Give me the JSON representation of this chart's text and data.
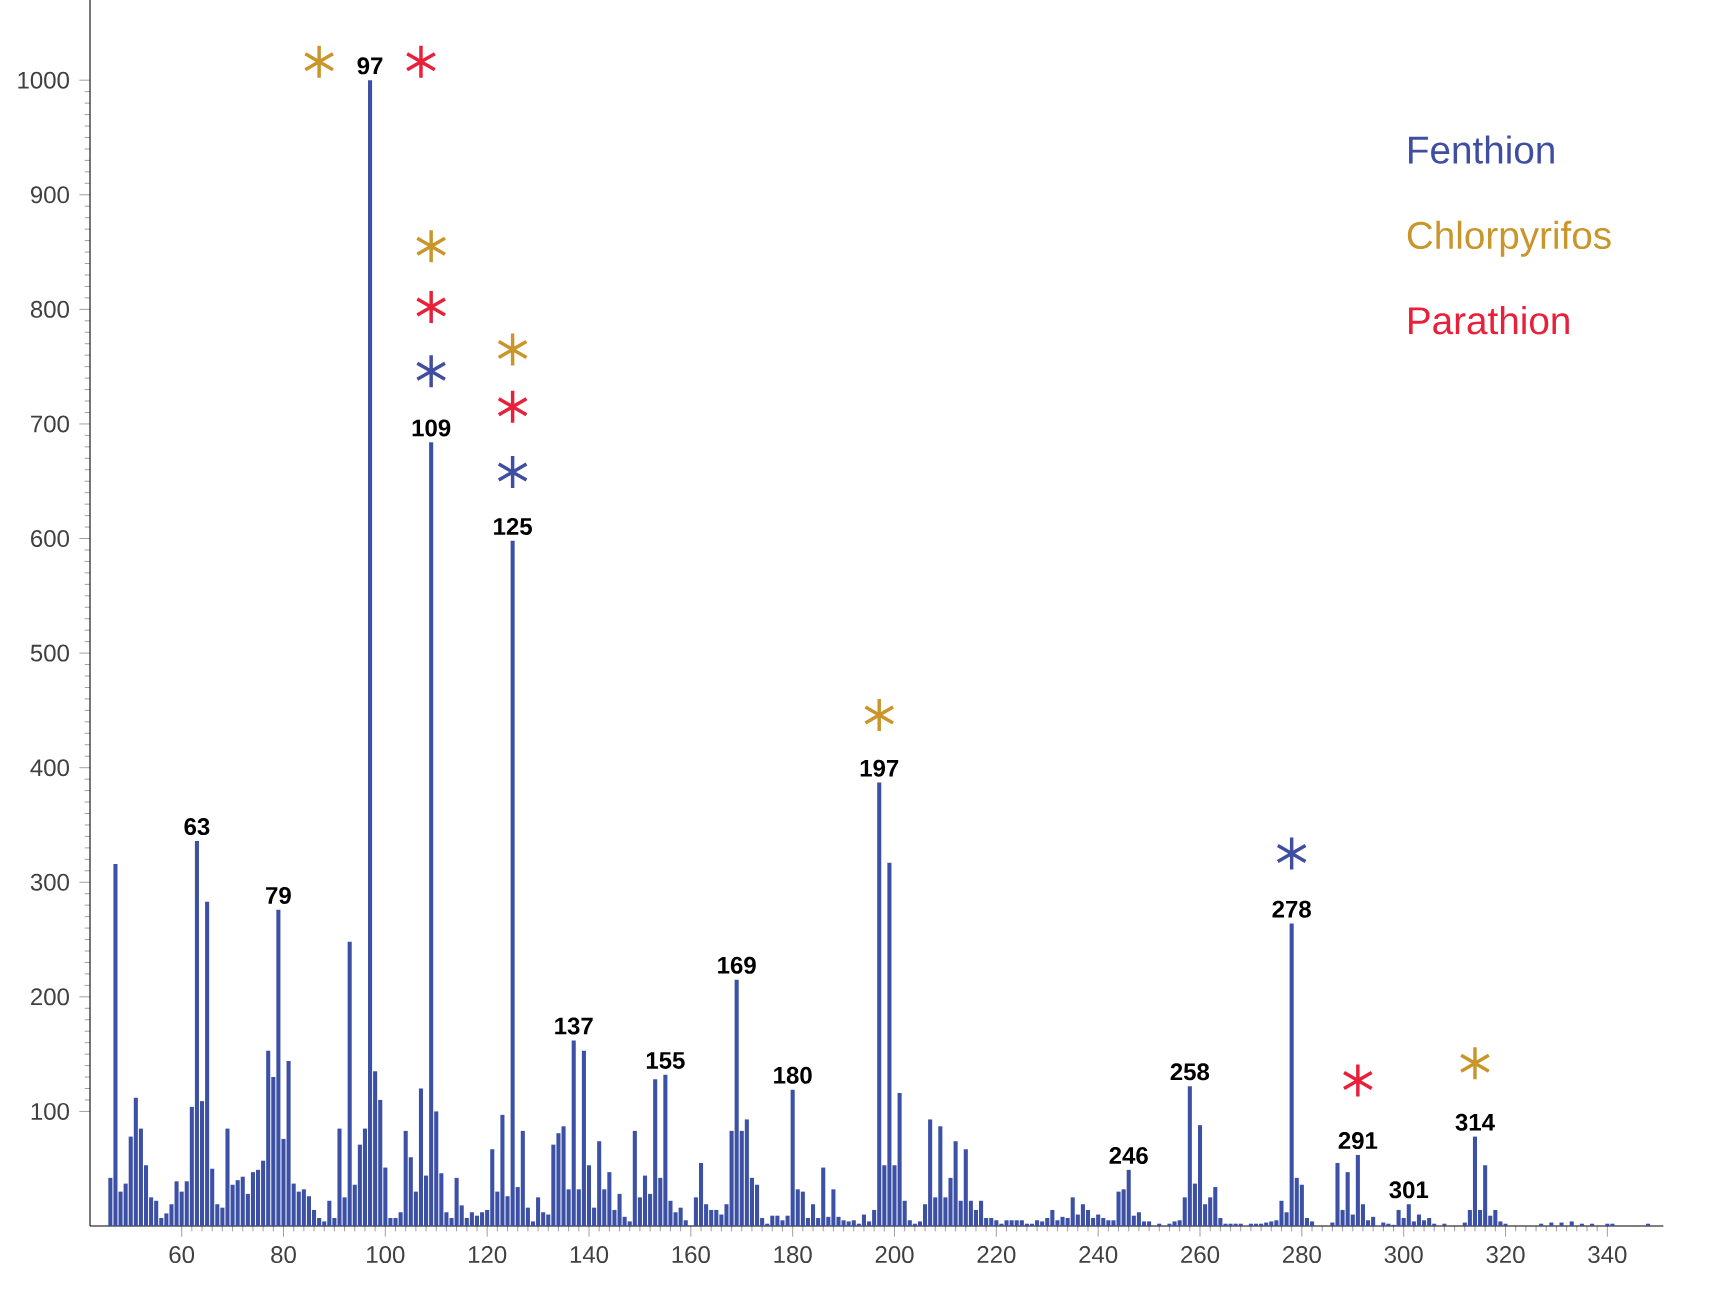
{
  "chart_data": {
    "type": "bar",
    "xlim": [
      42,
      351
    ],
    "ylim": [
      0,
      1070
    ],
    "xticks": [
      60,
      80,
      100,
      120,
      140,
      160,
      180,
      200,
      220,
      240,
      260,
      280,
      300,
      320,
      340
    ],
    "yticks": [
      100,
      200,
      300,
      400,
      500,
      600,
      700,
      800,
      900,
      1000
    ],
    "marker": "cross",
    "legend": "top right",
    "series": [
      {
        "color": "#3c50a5",
        "x": [
          46,
          47,
          48,
          49,
          50,
          51,
          52,
          53,
          54,
          55,
          56,
          57,
          58,
          59,
          60,
          61,
          62,
          63,
          64,
          65,
          66,
          67,
          68,
          69,
          70,
          71,
          72,
          73,
          74,
          75,
          76,
          77,
          78,
          79,
          80,
          81,
          82,
          83,
          84,
          85,
          86,
          87,
          88,
          89,
          90,
          91,
          92,
          93,
          94,
          95,
          96,
          97,
          98,
          99,
          100,
          101,
          102,
          103,
          104,
          105,
          106,
          107,
          108,
          109,
          110,
          111,
          112,
          113,
          114,
          115,
          116,
          117,
          118,
          119,
          120,
          121,
          122,
          123,
          124,
          125,
          126,
          127,
          128,
          129,
          130,
          131,
          132,
          133,
          134,
          135,
          136,
          137,
          138,
          139,
          140,
          141,
          142,
          143,
          144,
          145,
          146,
          147,
          148,
          149,
          150,
          151,
          152,
          153,
          154,
          155,
          156,
          157,
          158,
          159,
          161,
          162,
          163,
          164,
          165,
          166,
          167,
          168,
          169,
          170,
          171,
          172,
          173,
          174,
          175,
          176,
          177,
          178,
          179,
          180,
          181,
          182,
          183,
          184,
          185,
          186,
          187,
          188,
          189,
          190,
          191,
          192,
          193,
          194,
          195,
          196,
          197,
          198,
          199,
          200,
          201,
          202,
          203,
          204,
          205,
          206,
          207,
          208,
          209,
          210,
          211,
          212,
          213,
          214,
          215,
          216,
          217,
          218,
          219,
          220,
          221,
          222,
          223,
          224,
          225,
          226,
          227,
          228,
          229,
          230,
          231,
          232,
          233,
          234,
          235,
          236,
          237,
          238,
          239,
          240,
          241,
          242,
          243,
          244,
          245,
          246,
          247,
          248,
          249,
          250,
          252,
          254,
          255,
          256,
          257,
          258,
          259,
          260,
          261,
          262,
          263,
          264,
          265,
          266,
          267,
          268,
          270,
          271,
          272,
          273,
          274,
          275,
          276,
          277,
          278,
          279,
          280,
          281,
          282,
          286,
          287,
          288,
          289,
          290,
          291,
          292,
          293,
          294,
          296,
          297,
          298,
          299,
          300,
          301,
          302,
          303,
          304,
          305,
          306,
          308,
          312,
          313,
          314,
          315,
          316,
          317,
          318,
          319,
          320,
          327,
          329,
          331,
          333,
          335,
          337,
          340,
          341,
          348
        ],
        "values": [
          42,
          316,
          30,
          37,
          78,
          112,
          85,
          53,
          25,
          22,
          7,
          11,
          19,
          39,
          30,
          39,
          104,
          336,
          109,
          283,
          50,
          19,
          16,
          85,
          36,
          40,
          43,
          28,
          47,
          49,
          57,
          153,
          130,
          276,
          76,
          144,
          37,
          30,
          32,
          26,
          14,
          7,
          4,
          22,
          7,
          85,
          25,
          248,
          36,
          71,
          85,
          1000,
          135,
          110,
          51,
          7,
          7,
          12,
          83,
          60,
          30,
          120,
          44,
          684,
          100,
          46,
          12,
          7,
          42,
          18,
          7,
          12,
          9,
          12,
          14,
          67,
          30,
          97,
          26,
          598,
          34,
          83,
          16,
          4,
          25,
          12,
          10,
          71,
          81,
          87,
          32,
          162,
          32,
          153,
          53,
          16,
          74,
          32,
          47,
          14,
          28,
          8,
          4,
          83,
          25,
          44,
          28,
          128,
          42,
          132,
          22,
          12,
          16,
          5,
          25,
          55,
          19,
          14,
          14,
          10,
          19,
          83,
          215,
          83,
          93,
          42,
          36,
          7,
          2,
          9,
          9,
          5,
          9,
          119,
          32,
          30,
          7,
          19,
          7,
          51,
          8,
          32,
          8,
          5,
          4,
          5,
          2,
          10,
          4,
          14,
          387,
          53,
          317,
          53,
          116,
          22,
          5,
          2,
          4,
          19,
          93,
          25,
          87,
          25,
          42,
          74,
          22,
          67,
          22,
          14,
          22,
          7,
          7,
          5,
          2,
          5,
          5,
          5,
          5,
          2,
          2,
          5,
          4,
          7,
          14,
          5,
          8,
          7,
          25,
          10,
          19,
          14,
          7,
          10,
          7,
          5,
          5,
          30,
          32,
          49,
          9,
          12,
          4,
          4,
          2,
          2,
          4,
          5,
          25,
          122,
          37,
          88,
          19,
          25,
          34,
          7,
          2,
          2,
          2,
          2,
          2,
          2,
          2,
          3,
          4,
          5,
          22,
          12,
          264,
          42,
          36,
          7,
          4,
          3,
          55,
          14,
          47,
          10,
          62,
          19,
          5,
          8,
          3,
          2,
          1,
          14,
          7,
          19,
          4,
          10,
          5,
          7,
          2,
          2,
          3,
          14,
          78,
          14,
          53,
          9,
          14,
          4,
          2,
          2,
          3,
          3,
          4,
          2,
          2,
          2,
          2,
          2
        ]
      },
      {
        "name": "Fenthion",
        "type": "scatter",
        "color": "#3f4ea0",
        "x": [
          109,
          125,
          278
        ],
        "values": [
          746,
          658,
          325
        ]
      },
      {
        "name": "Chlorpyrifos",
        "type": "scatter",
        "color": "#c8962a",
        "x": [
          87,
          109,
          125,
          197,
          314
        ],
        "values": [
          1016,
          855,
          765,
          446,
          142
        ]
      },
      {
        "name": "Parathion",
        "type": "scatter",
        "color": "#e8203a",
        "x": [
          107,
          109,
          125,
          291
        ],
        "values": [
          1016,
          802,
          715,
          127
        ]
      }
    ],
    "annotations": [
      {
        "text": "63",
        "x": 63,
        "y": 336
      },
      {
        "text": "79",
        "x": 79,
        "y": 276
      },
      {
        "text": "97",
        "x": 97,
        "y": 1000
      },
      {
        "text": "109",
        "x": 109,
        "y": 684
      },
      {
        "text": "125",
        "x": 125,
        "y": 598
      },
      {
        "text": "137",
        "x": 137,
        "y": 162
      },
      {
        "text": "155",
        "x": 155,
        "y": 132
      },
      {
        "text": "169",
        "x": 169,
        "y": 215
      },
      {
        "text": "180",
        "x": 180,
        "y": 119
      },
      {
        "text": "197",
        "x": 197,
        "y": 387
      },
      {
        "text": "246",
        "x": 246,
        "y": 49
      },
      {
        "text": "258",
        "x": 258,
        "y": 122
      },
      {
        "text": "278",
        "x": 278,
        "y": 264
      },
      {
        "text": "291",
        "x": 291,
        "y": 62
      },
      {
        "text": "301",
        "x": 301,
        "y": 19
      },
      {
        "text": "314",
        "x": 314,
        "y": 78
      }
    ]
  }
}
